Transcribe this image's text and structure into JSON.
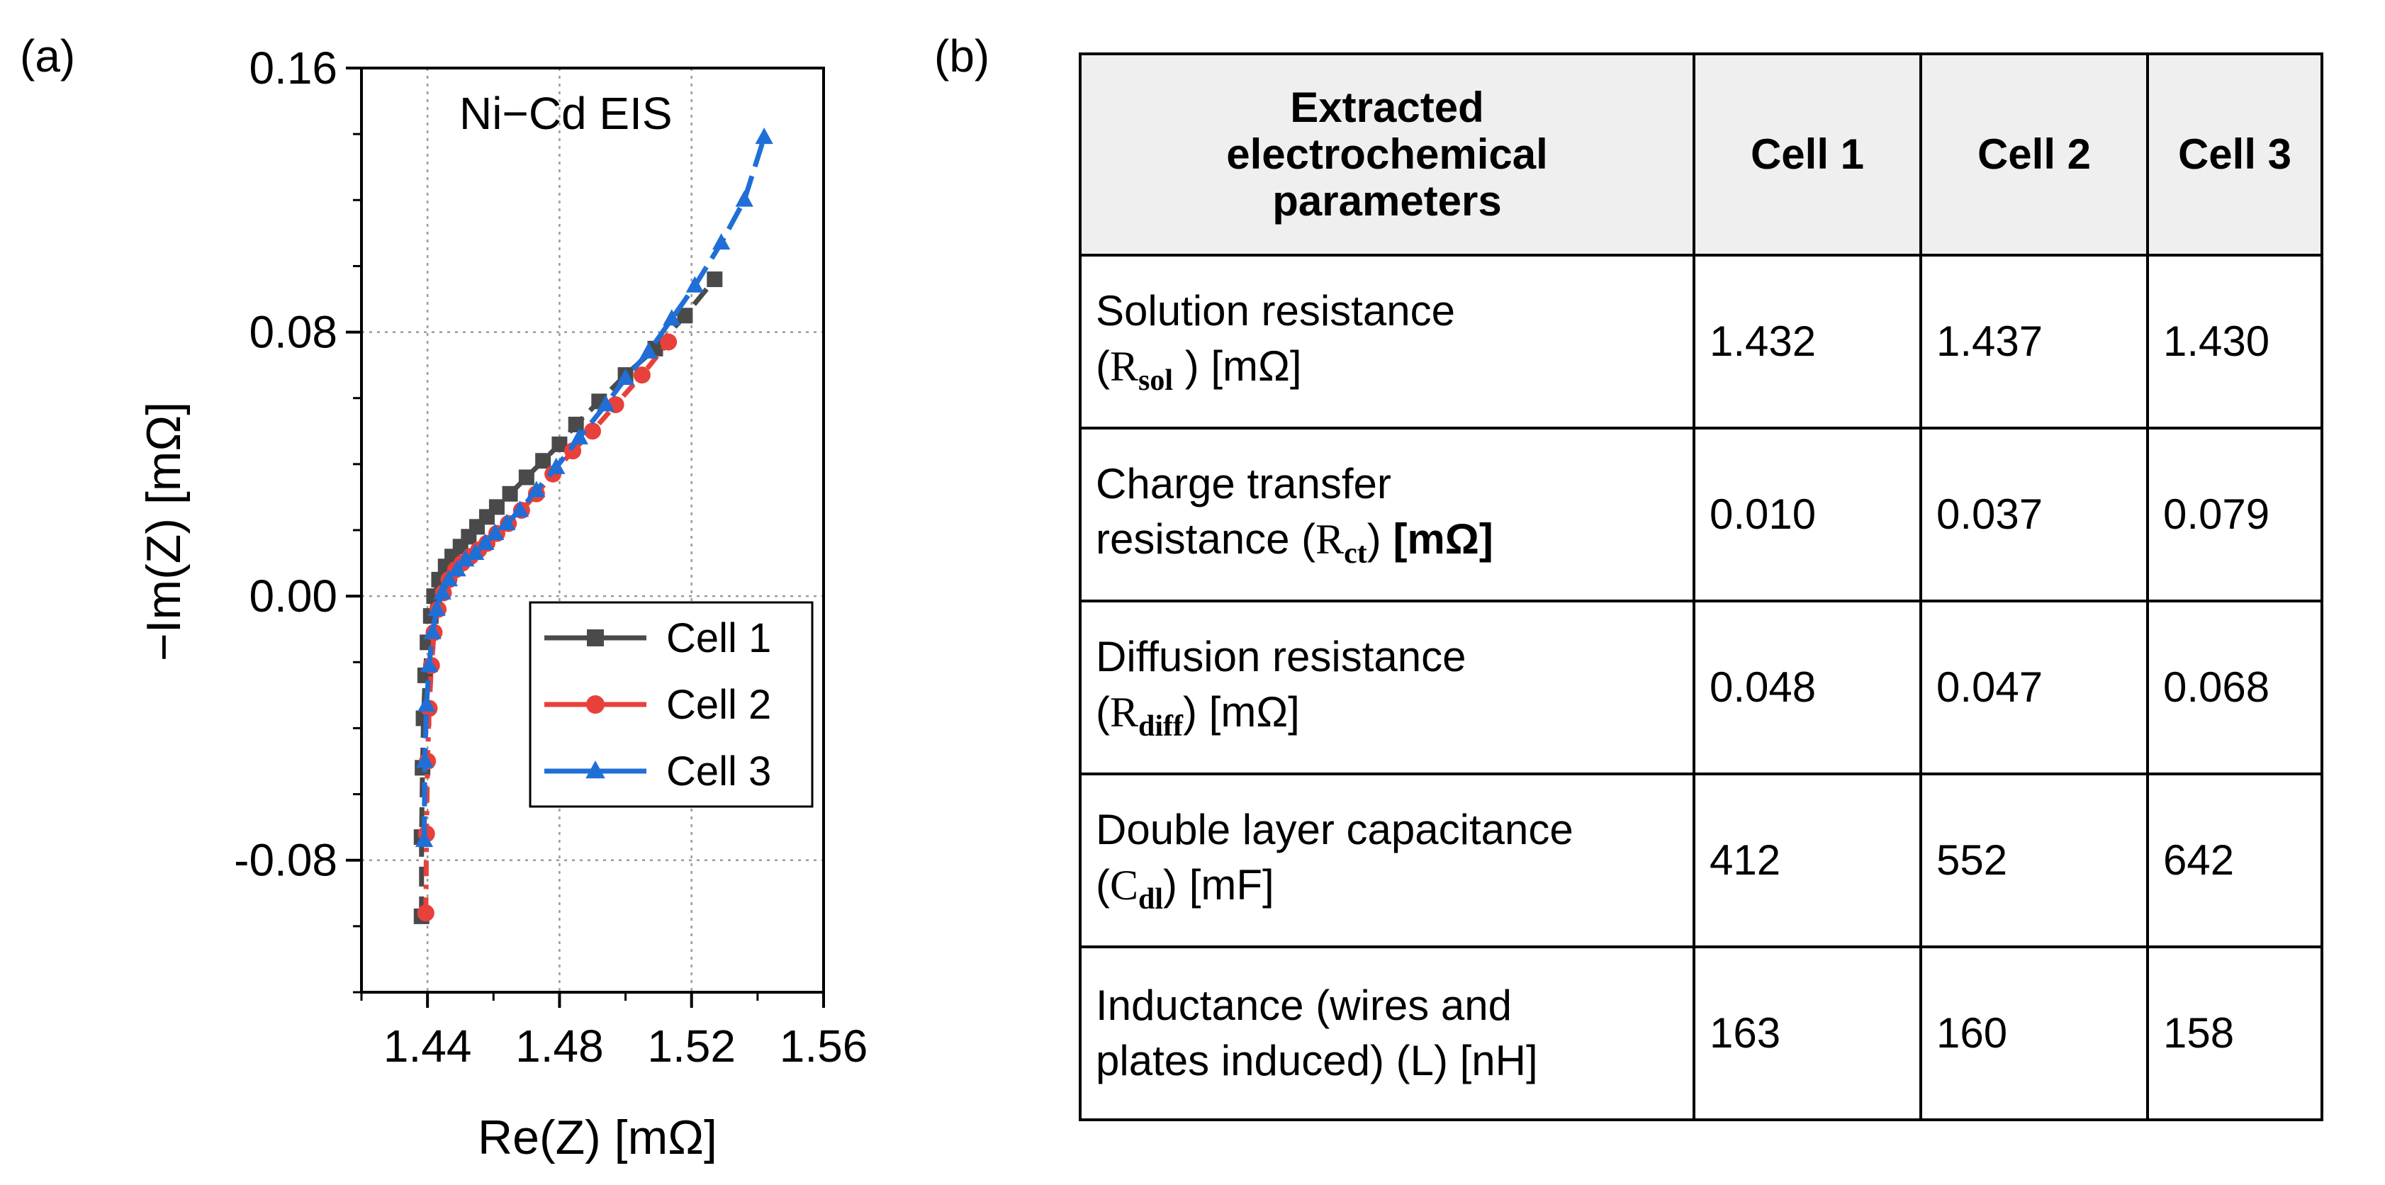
{
  "panels": {
    "a": "(a)",
    "b": "(b)"
  },
  "chart_data": {
    "type": "line",
    "title": "Ni−Cd EIS",
    "xlabel": "Re(Z) [mΩ]",
    "ylabel": "−Im(Z) [mΩ]",
    "xlim": [
      1.42,
      1.56
    ],
    "ylim": [
      -0.12,
      0.16
    ],
    "xticks": [
      1.44,
      1.48,
      1.52,
      1.56
    ],
    "xtick_labels": [
      "1.44",
      "1.48",
      "1.52",
      "1.56"
    ],
    "yticks": [
      -0.08,
      0.0,
      0.08,
      0.16
    ],
    "ytick_labels": [
      "-0.08",
      "0.00",
      "0.08",
      "0.16"
    ],
    "grid": true,
    "legend_position": "right-middle",
    "series": [
      {
        "name": "Cell 1",
        "color": "#4a4a4a",
        "marker": "square",
        "x": [
          1.4382,
          1.4382,
          1.4385,
          1.4388,
          1.4393,
          1.44,
          1.441,
          1.442,
          1.4435,
          1.4455,
          1.4475,
          1.45,
          1.4525,
          1.455,
          1.458,
          1.461,
          1.465,
          1.47,
          1.475,
          1.48,
          1.485,
          1.492,
          1.5,
          1.509,
          1.518,
          1.527
        ],
        "y": [
          -0.097,
          -0.073,
          -0.052,
          -0.037,
          -0.024,
          -0.014,
          -0.006,
          0.0,
          0.005,
          0.009,
          0.012,
          0.015,
          0.018,
          0.021,
          0.024,
          0.027,
          0.031,
          0.036,
          0.041,
          0.046,
          0.052,
          0.059,
          0.067,
          0.075,
          0.085,
          0.096
        ]
      },
      {
        "name": "Cell 2",
        "color": "#e8403b",
        "marker": "circle",
        "x": [
          1.4395,
          1.4397,
          1.44,
          1.4405,
          1.4412,
          1.442,
          1.4432,
          1.4448,
          1.4465,
          1.4485,
          1.4505,
          1.453,
          1.4555,
          1.458,
          1.461,
          1.4645,
          1.4685,
          1.473,
          1.478,
          1.484,
          1.49,
          1.497,
          1.505,
          1.513
        ],
        "y": [
          -0.096,
          -0.072,
          -0.05,
          -0.034,
          -0.021,
          -0.011,
          -0.004,
          0.001,
          0.005,
          0.008,
          0.01,
          0.012,
          0.014,
          0.016,
          0.019,
          0.022,
          0.026,
          0.031,
          0.037,
          0.044,
          0.05,
          0.058,
          0.067,
          0.077
        ]
      },
      {
        "name": "Cell 3",
        "color": "#1f6fd6",
        "marker": "triangle",
        "x": [
          1.439,
          1.4392,
          1.4397,
          1.4405,
          1.4415,
          1.4428,
          1.4445,
          1.4465,
          1.449,
          1.4515,
          1.4545,
          1.4575,
          1.4605,
          1.464,
          1.468,
          1.473,
          1.479,
          1.486,
          1.494,
          1.5,
          1.507,
          1.514,
          1.521,
          1.529,
          1.536,
          1.542
        ],
        "y": [
          -0.074,
          -0.05,
          -0.033,
          -0.021,
          -0.011,
          -0.004,
          0.001,
          0.005,
          0.008,
          0.011,
          0.013,
          0.016,
          0.019,
          0.022,
          0.026,
          0.032,
          0.039,
          0.048,
          0.058,
          0.066,
          0.074,
          0.084,
          0.094,
          0.107,
          0.12,
          0.139
        ]
      }
    ]
  },
  "table": {
    "header": {
      "param": [
        "Extracted",
        "electrochemical",
        "parameters"
      ],
      "cells": [
        "Cell 1",
        "Cell 2",
        "Cell 3"
      ]
    },
    "rows": [
      {
        "name": "Solution resistance",
        "sym": "R",
        "sub": "sol",
        "space": " ",
        "unit": "[mΩ]",
        "vals": [
          "1.432",
          "1.437",
          "1.430"
        ]
      },
      {
        "name": "Charge transfer",
        "line2": "resistance",
        "sym": "R",
        "sub": "ct",
        "unit": "[mΩ]",
        "vals": [
          "0.010",
          "0.037",
          "0.079"
        ]
      },
      {
        "name": "Diffusion resistance",
        "sym": "R",
        "sub": "diff",
        "unit": "[mΩ]",
        "vals": [
          "0.048",
          "0.047",
          "0.068"
        ]
      },
      {
        "name": "Double layer capacitance",
        "sym": "C",
        "sub": "dl",
        "unit": "[mF]",
        "vals": [
          "412",
          "552",
          "642"
        ]
      },
      {
        "name": "Inductance (wires and",
        "line2": "plates induced) (L) [nH]",
        "vals": [
          "163",
          "160",
          "158"
        ]
      }
    ]
  }
}
